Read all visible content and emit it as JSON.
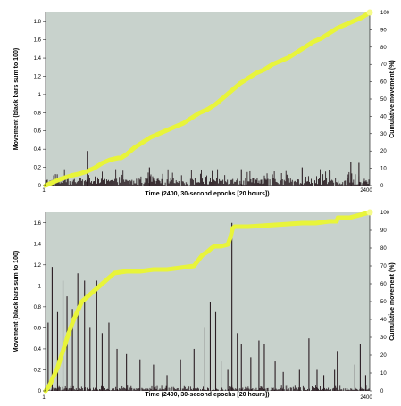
{
  "colors": {
    "plot_background": "#c8d2cc",
    "activity_bars": "#2a1c22",
    "cumulative_line": "#e8f43a",
    "cumulative_line_dot": "#f6fb8a"
  },
  "chart_data": [
    {
      "type": "bar",
      "position": "top",
      "grid": false,
      "legend": "none",
      "xlabel": "Time (2400, 30-second epochs [20 hours])",
      "ylabel": "Movement (black bars sum to 100)",
      "y2label": "Cumulative movement (%)",
      "xlim": [
        1,
        2400
      ],
      "x_ticks": [
        "1",
        "2400"
      ],
      "ylim": [
        0,
        1.9
      ],
      "y_ticks": [
        "0",
        "0.2",
        "0.4",
        "0.6",
        "0.8",
        "1",
        "1.2",
        "1.4",
        "1.6",
        "1.8"
      ],
      "y2lim": [
        0,
        100
      ],
      "y2_ticks": [
        "0",
        "10",
        "20",
        "30",
        "40",
        "50",
        "60",
        "70",
        "80",
        "90",
        "100"
      ],
      "bars": {
        "n_epochs": 2400,
        "typical_height": 0.08,
        "max_height": 0.18,
        "peaks": [
          {
            "x": 310,
            "y": 0.38
          },
          {
            "x": 770,
            "y": 0.2
          },
          {
            "x": 1450,
            "y": 0.18
          },
          {
            "x": 1900,
            "y": 0.2
          },
          {
            "x": 2260,
            "y": 0.26
          },
          {
            "x": 2320,
            "y": 0.25
          }
        ]
      },
      "cumulative": {
        "x": [
          1,
          60,
          120,
          200,
          260,
          300,
          360,
          420,
          480,
          540,
          560,
          600,
          660,
          720,
          780,
          840,
          900,
          960,
          1020,
          1080,
          1140,
          1200,
          1260,
          1320,
          1380,
          1440,
          1500,
          1560,
          1620,
          1680,
          1740,
          1800,
          1860,
          1920,
          1980,
          2040,
          2100,
          2160,
          2220,
          2280,
          2340,
          2400
        ],
        "y": [
          0,
          2,
          4,
          6,
          7,
          8,
          10,
          13,
          15,
          16,
          16,
          18,
          22,
          25,
          28,
          30,
          32,
          34,
          36,
          39,
          42,
          44,
          47,
          51,
          55,
          59,
          62,
          65,
          67,
          70,
          72,
          74,
          77,
          80,
          83,
          85,
          88,
          91,
          93,
          95,
          97,
          100
        ]
      }
    },
    {
      "type": "bar",
      "position": "bottom",
      "grid": false,
      "legend": "none",
      "xlabel": "Time (2400, 30-second epochs [20 hours])",
      "ylabel": "Movement (black bars sum to 100)",
      "y2label": "Cumulative movement (%)",
      "xlim": [
        1,
        2400
      ],
      "x_ticks": [
        "1",
        "2400"
      ],
      "ylim": [
        0,
        1.7
      ],
      "y_ticks": [
        "0",
        "0.2",
        "0.4",
        "0.6",
        "0.8",
        "1",
        "1.2",
        "1.4",
        "1.6"
      ],
      "y2lim": [
        0,
        100
      ],
      "y2_ticks": [
        "0",
        "10",
        "20",
        "30",
        "40",
        "50",
        "60",
        "70",
        "80",
        "90",
        "100"
      ],
      "bars": {
        "n_epochs": 2400,
        "typical_height": 0.03,
        "max_height": 0.05,
        "peaks": [
          {
            "x": 20,
            "y": 0.65
          },
          {
            "x": 50,
            "y": 1.18
          },
          {
            "x": 90,
            "y": 0.75
          },
          {
            "x": 130,
            "y": 1.05
          },
          {
            "x": 160,
            "y": 0.9
          },
          {
            "x": 200,
            "y": 0.78
          },
          {
            "x": 240,
            "y": 1.12
          },
          {
            "x": 290,
            "y": 1.05
          },
          {
            "x": 330,
            "y": 0.6
          },
          {
            "x": 380,
            "y": 1.05
          },
          {
            "x": 420,
            "y": 0.55
          },
          {
            "x": 470,
            "y": 0.65
          },
          {
            "x": 530,
            "y": 0.4
          },
          {
            "x": 600,
            "y": 0.35
          },
          {
            "x": 700,
            "y": 0.3
          },
          {
            "x": 800,
            "y": 0.25
          },
          {
            "x": 900,
            "y": 0.15
          },
          {
            "x": 1000,
            "y": 0.3
          },
          {
            "x": 1100,
            "y": 0.4
          },
          {
            "x": 1180,
            "y": 0.6
          },
          {
            "x": 1220,
            "y": 0.85
          },
          {
            "x": 1260,
            "y": 0.75
          },
          {
            "x": 1300,
            "y": 0.28
          },
          {
            "x": 1350,
            "y": 0.2
          },
          {
            "x": 1380,
            "y": 1.6
          },
          {
            "x": 1420,
            "y": 0.55
          },
          {
            "x": 1450,
            "y": 0.45
          },
          {
            "x": 1520,
            "y": 0.32
          },
          {
            "x": 1580,
            "y": 0.48
          },
          {
            "x": 1620,
            "y": 0.45
          },
          {
            "x": 1700,
            "y": 0.28
          },
          {
            "x": 1760,
            "y": 0.18
          },
          {
            "x": 1880,
            "y": 0.2
          },
          {
            "x": 1950,
            "y": 0.5
          },
          {
            "x": 2010,
            "y": 0.2
          },
          {
            "x": 2060,
            "y": 0.15
          },
          {
            "x": 2140,
            "y": 0.2
          },
          {
            "x": 2160,
            "y": 0.38
          },
          {
            "x": 2290,
            "y": 0.25
          },
          {
            "x": 2330,
            "y": 0.45
          },
          {
            "x": 2370,
            "y": 0.15
          }
        ]
      },
      "cumulative": {
        "x": [
          1,
          30,
          60,
          90,
          120,
          150,
          180,
          210,
          240,
          270,
          300,
          330,
          360,
          390,
          420,
          450,
          480,
          510,
          600,
          700,
          800,
          900,
          1000,
          1100,
          1130,
          1160,
          1200,
          1230,
          1250,
          1300,
          1350,
          1370,
          1385,
          1400,
          1500,
          1700,
          1900,
          2000,
          2100,
          2155,
          2165,
          2250,
          2300,
          2350,
          2400
        ],
        "y": [
          0,
          3,
          8,
          13,
          20,
          27,
          34,
          40,
          45,
          50,
          52,
          54,
          56,
          58,
          60,
          62,
          64,
          66,
          67,
          67,
          68,
          68,
          69,
          70,
          73,
          76,
          78,
          80,
          81,
          81,
          82,
          86,
          91,
          92,
          92,
          93,
          94,
          94,
          95,
          95,
          97,
          97,
          98,
          99,
          100
        ]
      }
    }
  ]
}
